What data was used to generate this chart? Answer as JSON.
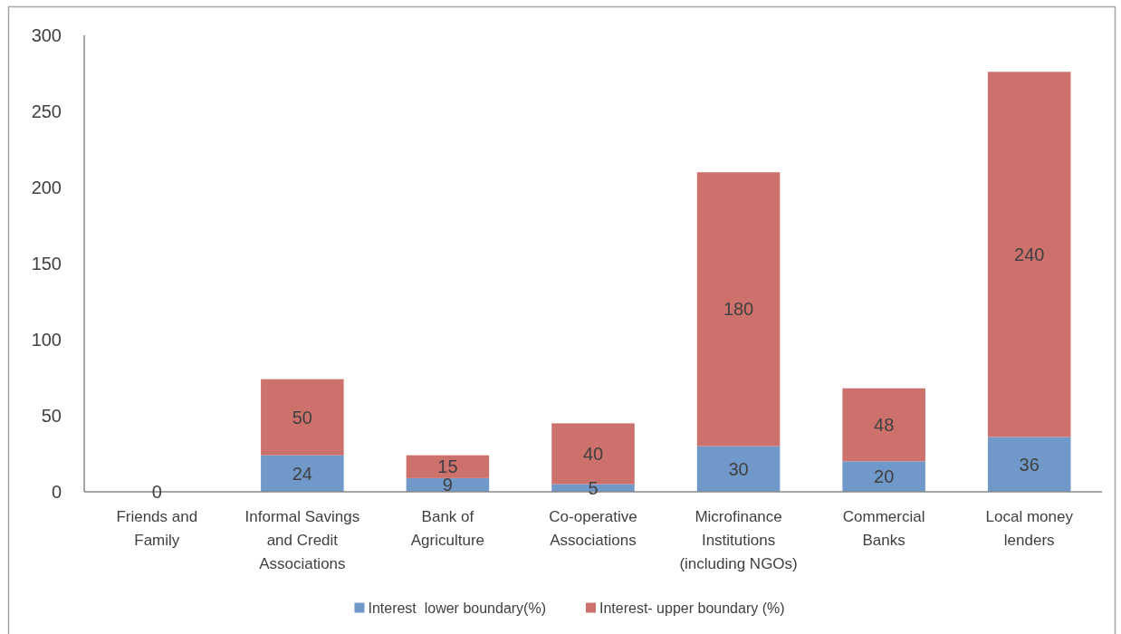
{
  "chart_data": {
    "type": "bar",
    "stacked": true,
    "categories": [
      "Friends and Family",
      "Informal Savings and Credit Associations",
      "Bank of Agriculture",
      "Co-operative Associations",
      "Microfinance Institutions (including NGOs)",
      "Commercial Banks",
      "Local money lenders"
    ],
    "series": [
      {
        "name": "Interest  lower boundary(%)",
        "color": "#7099ca",
        "values": [
          0,
          24,
          9,
          5,
          30,
          20,
          36
        ],
        "value_labels": [
          "0",
          "24",
          "9",
          "5",
          "30",
          "20",
          "36"
        ]
      },
      {
        "name": "Interest- upper boundary (%)",
        "color": "#cc716c",
        "values": [
          0,
          50,
          15,
          40,
          180,
          48,
          240
        ],
        "value_labels": [
          null,
          "50",
          "15",
          "40",
          "180",
          "48",
          "240"
        ]
      }
    ],
    "ylim": [
      0,
      300
    ],
    "yticks": [
      0,
      50,
      100,
      150,
      200,
      250,
      300
    ],
    "grid": false,
    "legend": "bottom"
  }
}
